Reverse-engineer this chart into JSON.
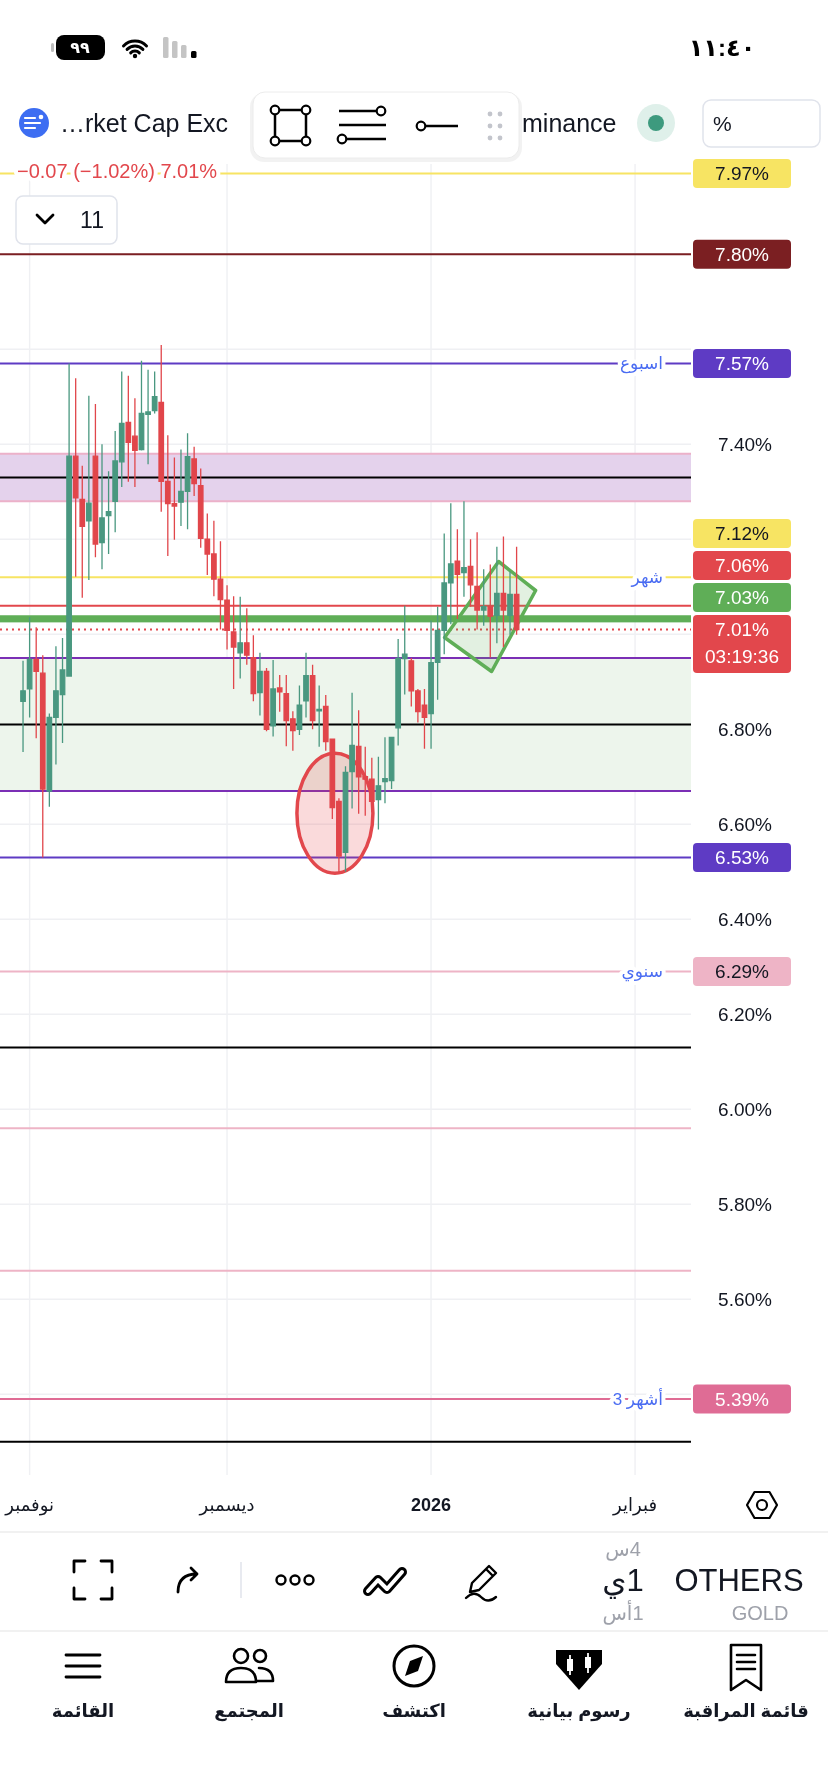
{
  "chart_data": {
    "type": "candlestick",
    "title": "…rket Cap Exc",
    "subtitle": "−0.07 (−1.02%) 7.01%",
    "categories": [
      null,
      null,
      null,
      null,
      "نوفمبر",
      null,
      null,
      null,
      null,
      null,
      null,
      null,
      null,
      null,
      null,
      null,
      null,
      null,
      null,
      null,
      null,
      null,
      null,
      null,
      null,
      null,
      null,
      null,
      null,
      null,
      null,
      null,
      null,
      null,
      "ديسمبر",
      null,
      null,
      null,
      null,
      null,
      null,
      null,
      null,
      null,
      null,
      null,
      null,
      null,
      null,
      null,
      null,
      null,
      null,
      null,
      null,
      null,
      null,
      null,
      null,
      null,
      null,
      null,
      null,
      null,
      null,
      "2026",
      null,
      null,
      null,
      null,
      null,
      null,
      null,
      null,
      null,
      null,
      null,
      null,
      null,
      null,
      null,
      null,
      null,
      null,
      null,
      null,
      null,
      null,
      null,
      null,
      null,
      null,
      null,
      null,
      null,
      null,
      "فبراير",
      null,
      null,
      null,
      null,
      null,
      null,
      null,
      null
    ],
    "ohlc": [
      null,
      null,
      null,
      [
        6.859,
        6.944,
        6.752,
        6.881
      ],
      [
        6.885,
        7.036,
        6.825,
        6.947
      ],
      [
        6.947,
        7.015,
        6.781,
        6.922
      ],
      [
        6.918,
        6.956,
        6.53,
        6.674
      ],
      [
        6.67,
        6.833,
        6.637,
        6.825
      ],
      [
        6.825,
        6.975,
        6.726,
        6.881
      ],
      [
        6.873,
        6.992,
        6.771,
        6.925
      ],
      [
        6.912,
        7.57,
        6.912,
        7.375
      ],
      [
        7.375,
        7.539,
        7.121,
        7.287
      ],
      [
        7.284,
        7.355,
        7.077,
        7.227
      ],
      [
        7.239,
        7.502,
        7.114,
        7.276
      ],
      [
        7.375,
        7.485,
        7.162,
        7.19
      ],
      [
        7.193,
        7.4,
        7.137,
        7.245
      ],
      [
        7.25,
        7.343,
        7.169,
        7.258
      ],
      [
        7.28,
        7.428,
        7.215,
        7.365
      ],
      [
        7.363,
        7.553,
        7.31,
        7.444
      ],
      [
        7.446,
        7.544,
        7.321,
        7.404
      ],
      [
        7.417,
        7.497,
        7.31,
        7.387
      ],
      [
        7.389,
        7.576,
        7.387,
        7.465
      ],
      [
        7.463,
        7.557,
        7.358,
        7.468
      ],
      [
        7.471,
        7.553,
        7.465,
        7.5
      ],
      [
        7.488,
        7.609,
        7.258,
        7.322
      ],
      [
        7.322,
        7.419,
        7.165,
        7.275
      ],
      [
        7.275,
        7.372,
        7.199,
        7.27
      ],
      [
        7.278,
        7.389,
        7.228,
        7.301
      ],
      [
        7.301,
        7.423,
        7.221,
        7.374
      ],
      [
        7.369,
        7.395,
        7.291,
        7.317
      ],
      [
        7.313,
        7.349,
        7.182,
        7.202
      ],
      [
        7.2,
        7.254,
        7.125,
        7.169
      ],
      [
        7.169,
        7.239,
        7.08,
        7.116
      ],
      [
        7.116,
        7.196,
        7.01,
        7.073
      ],
      [
        7.072,
        7.103,
        6.968,
        7.008
      ],
      [
        7.005,
        7.08,
        6.885,
        6.973
      ],
      [
        6.961,
        7.079,
        6.907,
        6.982
      ],
      [
        6.982,
        7.055,
        6.936,
        6.956
      ],
      [
        6.951,
        6.998,
        6.859,
        6.875
      ],
      [
        6.877,
        6.961,
        6.829,
        6.922
      ],
      [
        6.922,
        6.929,
        6.796,
        6.8
      ],
      [
        6.807,
        6.946,
        6.785,
        6.885
      ],
      [
        6.887,
        6.914,
        6.837,
        6.879
      ],
      [
        6.875,
        6.914,
        6.764,
        6.818
      ],
      [
        6.822,
        6.838,
        6.755,
        6.797
      ],
      [
        6.8,
        6.892,
        6.788,
        6.851
      ],
      [
        6.86,
        6.961,
        6.825,
        6.913
      ],
      [
        6.913,
        6.936,
        6.8,
        6.818
      ],
      [
        6.839,
        6.892,
        6.763,
        6.842
      ],
      [
        6.848,
        6.872,
        6.755,
        6.774
      ],
      [
        6.779,
        6.779,
        6.611,
        6.635
      ],
      [
        6.648,
        6.655,
        6.497,
        6.533
      ],
      [
        6.541,
        6.722,
        6.5,
        6.709
      ],
      [
        6.711,
        6.877,
        6.633,
        6.766
      ],
      [
        6.764,
        6.84,
        6.622,
        6.7
      ],
      [
        6.7,
        6.763,
        6.618,
        6.695
      ],
      [
        6.695,
        6.74,
        6.626,
        6.648
      ],
      [
        6.652,
        6.742,
        6.589,
        6.681
      ],
      [
        6.69,
        6.783,
        6.644,
        6.696
      ],
      [
        6.692,
        6.783,
        6.674,
        6.783
      ],
      [
        6.803,
        6.99,
        6.766,
        6.949
      ],
      [
        6.949,
        7.06,
        6.873,
        6.958
      ],
      [
        6.944,
        6.95,
        6.848,
        6.881
      ],
      [
        6.881,
        6.885,
        6.814,
        6.837
      ],
      [
        6.851,
        6.885,
        6.759,
        6.825
      ],
      [
        6.833,
        7.029,
        6.759,
        6.94
      ],
      [
        6.941,
        7.058,
        6.862,
        7.008
      ],
      [
        7.008,
        7.212,
        6.958,
        7.108
      ],
      [
        7.108,
        7.276,
        7.021,
        7.148
      ],
      [
        7.154,
        7.221,
        7.032,
        7.126
      ],
      [
        7.13,
        7.28,
        7.079,
        7.14
      ],
      [
        7.143,
        7.2,
        7.058,
        7.104
      ],
      [
        7.101,
        7.215,
        7.01,
        7.051
      ],
      [
        7.051,
        7.137,
        7.018,
        7.058
      ],
      [
        7.058,
        7.147,
        6.951,
        7.038
      ],
      [
        7.04,
        7.184,
        6.981,
        7.086
      ],
      [
        7.086,
        7.206,
        6.973,
        7.051
      ],
      [
        7.04,
        7.132,
        6.999,
        7.084
      ],
      [
        7.084,
        7.184,
        6.999,
        7.01
      ],
      null,
      null,
      null,
      null,
      null,
      null,
      null,
      null,
      null,
      null,
      null,
      null,
      null,
      null,
      null,
      null,
      null,
      null,
      null,
      null,
      null,
      null,
      null,
      null,
      null,
      null
    ],
    "colors": [
      null,
      null,
      null,
      "#4a9880",
      "#4a9880",
      "#e1464b",
      "#e1464b",
      "#4a9880",
      "#4a9880",
      "#4a9880",
      "#4a9880",
      "#e1464b",
      "#e1464b",
      "#4a9880",
      "#e1464b",
      "#4a9880",
      "#4a9880",
      "#4a9880",
      "#4a9880",
      "#e1464b",
      "#e1464b",
      "#4a9880",
      "#4a9880",
      "#4a9880",
      "#e1464b",
      "#e1464b",
      "#e1464b",
      "#4a9880",
      "#4a9880",
      "#e1464b",
      "#e1464b",
      "#e1464b",
      "#e1464b",
      "#e1464b",
      "#e1464b",
      "#e1464b",
      "#4a9880",
      "#e1464b",
      "#e1464b",
      "#4a9880",
      "#e1464b",
      "#4a9880",
      "#e1464b",
      "#e1464b",
      "#e1464b",
      "#4a9880",
      "#4a9880",
      "#e1464b",
      "#4a9880",
      "#e1464b",
      "#e1464b",
      "#e1464b",
      "#4a9880",
      "#4a9880",
      "#e1464b",
      "#e1464b",
      "#e1464b",
      "#4a9880",
      "#4a9880",
      "#4a9880",
      "#4a9880",
      "#4a9880",
      "#e1464b",
      "#e1464b",
      "#e1464b",
      "#4a9880",
      "#4a9880",
      "#4a9880",
      "#4a9880",
      "#e1464b",
      "#4a9880",
      "#e1464b",
      "#e1464b",
      "#4a9880",
      "#e1464b",
      "#4a9880",
      "#e1464b",
      "#4a9880",
      "#e1464b",
      null,
      null,
      null,
      null,
      null,
      null,
      null,
      null,
      null,
      null,
      null,
      null,
      null,
      null,
      null,
      null,
      null,
      null,
      null,
      null,
      null,
      null,
      null,
      null,
      null,
      null
    ],
    "ylim": [
      5.23,
      7.99
    ],
    "yticks": [
      {
        "value": 5.4,
        "label": null
      },
      {
        "value": 5.6,
        "label": "5.60%"
      },
      {
        "value": 5.8,
        "label": "5.80%"
      },
      {
        "value": 6.0,
        "label": "6.00%"
      },
      {
        "value": 6.2,
        "label": "6.20%"
      },
      {
        "value": 6.4,
        "label": "6.40%"
      },
      {
        "value": 6.6,
        "label": "6.60%"
      },
      {
        "value": 6.8,
        "label": "6.80%"
      },
      {
        "value": 7.0,
        "label": null
      },
      {
        "value": 7.2,
        "label": null
      },
      {
        "value": 7.4,
        "label": "7.40%"
      },
      {
        "value": 7.6,
        "label": null
      },
      {
        "value": 7.8,
        "label": null
      }
    ],
    "grid": true,
    "bands": [
      {
        "axis": "y",
        "from": 7.28,
        "to": 7.38,
        "color": "#e4d2ec"
      },
      {
        "axis": "y",
        "from": 6.67,
        "to": 6.95,
        "color": "#edf5ec"
      },
      {
        "axis": "y",
        "from": 7.025,
        "to": 7.04,
        "color": "#5fae57",
        "label": "7.03%"
      }
    ],
    "ref_lines": [
      {
        "axis": "y",
        "value": 7.97,
        "label": "7.97%",
        "color": "#f7e463"
      },
      {
        "axis": "y",
        "value": 7.8,
        "label": "7.80%",
        "color": "#7b1f22"
      },
      {
        "axis": "y",
        "value": 7.57,
        "label": "7.57%",
        "color": "#5e3bc4"
      },
      {
        "axis": "y",
        "value": 7.38,
        "color": "#ecb1c9"
      },
      {
        "axis": "y",
        "value": 7.33,
        "color": "#000000"
      },
      {
        "axis": "y",
        "value": 7.28,
        "color": "#ecb1c9"
      },
      {
        "axis": "y",
        "value": 7.12,
        "label": "7.12%",
        "color": "#f7e463"
      },
      {
        "axis": "y",
        "value": 7.06,
        "label": "7.06%",
        "color": "#e2474c"
      },
      {
        "axis": "y",
        "value": 7.01,
        "label": "7.01%\n03:19:36",
        "color": "#e2474c",
        "line_style": "dotted"
      },
      {
        "axis": "y",
        "value": 6.95,
        "color": "#7b2fb5"
      },
      {
        "axis": "y",
        "value": 6.81,
        "color": "#000000"
      },
      {
        "axis": "y",
        "value": 6.67,
        "color": "#7b2fb5"
      },
      {
        "axis": "y",
        "value": 6.53,
        "label": "6.53%",
        "color": "#5e3bc4"
      },
      {
        "axis": "y",
        "value": 6.29,
        "label": "6.29%",
        "color": "#eeb4c6"
      },
      {
        "axis": "y",
        "value": 6.13,
        "color": "#000000"
      },
      {
        "axis": "y",
        "value": 5.96,
        "color": "#eeb4c6"
      },
      {
        "axis": "y",
        "value": 5.66,
        "color": "#eeb4c6"
      },
      {
        "axis": "y",
        "value": 5.39,
        "label": "5.39%",
        "color": "#df6c95"
      },
      {
        "axis": "y",
        "value": 5.3,
        "color": "#000000"
      }
    ],
    "annotations": [
      "minance",
      {
        "text": "اسبوع",
        "y": 7.57
      },
      {
        "text": "شهر",
        "y": 7.12
      },
      {
        "text": "سنوي",
        "y": 6.29
      },
      {
        "text": "3 أشهر",
        "y": 5.39
      },
      "11",
      "%",
      "١١:٤٠",
      "٩٩",
      "OTHERS",
      "1ي",
      "4س",
      "1أس",
      "GOLD",
      "قائمة المراقبة",
      "رسوم بيانية",
      "اكتشف",
      "المجتمع",
      "القائمة"
    ]
  }
}
